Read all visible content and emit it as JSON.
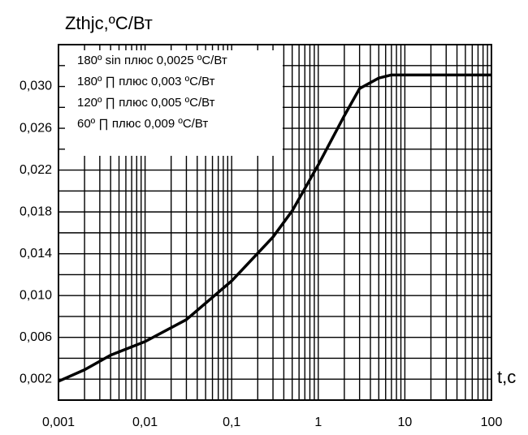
{
  "chart_data": {
    "type": "line",
    "title": "Zthjc,ºC/Вт",
    "xlabel": "t,c",
    "annotations": [
      "180º sin плюс 0,0025 ºC/Вт",
      "180º ∏ плюс 0,003 ºC/Вт",
      "120º ∏ плюс 0,005 ºC/Вт",
      "60º ∏ плюс 0,009 ºC/Вт"
    ],
    "x": [
      0.001,
      0.002,
      0.004,
      0.01,
      0.03,
      0.1,
      0.3,
      0.5,
      1,
      2,
      3,
      5,
      7,
      10,
      100
    ],
    "values": [
      0.0018,
      0.0029,
      0.0043,
      0.0056,
      0.0077,
      0.0114,
      0.0156,
      0.0181,
      0.0225,
      0.0272,
      0.0298,
      0.0308,
      0.0311,
      0.0311,
      0.0311
    ],
    "color": "#000000",
    "xscale": "log",
    "xlim": [
      0.001,
      100
    ],
    "xticks": [
      {
        "value": 0.001,
        "label": "0,001"
      },
      {
        "value": 0.01,
        "label": "0,01"
      },
      {
        "value": 0.1,
        "label": "0,1"
      },
      1,
      10,
      100
    ],
    "xgrid_minor": [
      0.002,
      0.003,
      0.004,
      0.005,
      0.006,
      0.007,
      0.008,
      0.009,
      0.02,
      0.03,
      0.04,
      0.05,
      0.06,
      0.07,
      0.08,
      0.09,
      0.2,
      0.3,
      0.4,
      0.5,
      0.6,
      0.7,
      0.8,
      0.9,
      2,
      3,
      4,
      5,
      6,
      7,
      8,
      9,
      20,
      30,
      40,
      50,
      60,
      70,
      80,
      90
    ],
    "ylim": [
      0,
      0.034
    ],
    "yticks": [
      {
        "value": 0.002,
        "label": "0,002"
      },
      {
        "value": 0.006,
        "label": "0,006"
      },
      {
        "value": 0.01,
        "label": "0,010"
      },
      {
        "value": 0.014,
        "label": "0,014"
      },
      {
        "value": 0.018,
        "label": "0,018"
      },
      {
        "value": 0.022,
        "label": "0,022"
      },
      {
        "value": 0.026,
        "label": "0,026"
      },
      {
        "value": 0.03,
        "label": "0,030"
      }
    ],
    "ygrid_minor": [
      0.004,
      0.008,
      0.012,
      0.016,
      0.02,
      0.024,
      0.028,
      0.032
    ],
    "grid": true
  }
}
